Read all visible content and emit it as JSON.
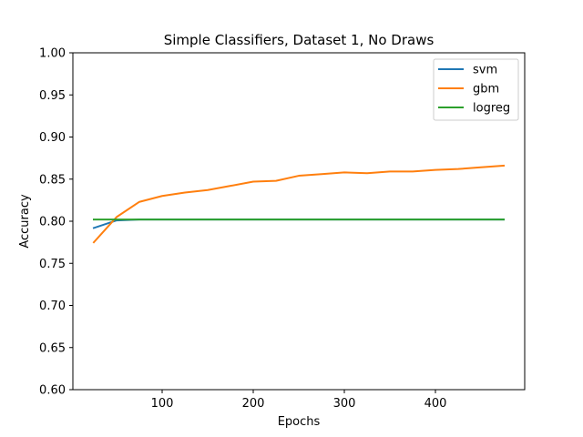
{
  "chart_data": {
    "type": "line",
    "title": "Simple Classifiers, Dataset 1, No Draws",
    "xlabel": "Epochs",
    "ylabel": "Accuracy",
    "xlim": [
      2,
      498
    ],
    "ylim": [
      0.6,
      1.0
    ],
    "xticks": [
      100,
      200,
      300,
      400
    ],
    "yticks": [
      0.6,
      0.65,
      0.7,
      0.75,
      0.8,
      0.85,
      0.9,
      0.95,
      1.0
    ],
    "ytick_labels": [
      "0.60",
      "0.65",
      "0.70",
      "0.75",
      "0.80",
      "0.85",
      "0.90",
      "0.95",
      "1.00"
    ],
    "grid": false,
    "legend_position": "top-right",
    "x": [
      25,
      50,
      75,
      100,
      125,
      150,
      175,
      200,
      225,
      250,
      275,
      300,
      325,
      350,
      375,
      400,
      425,
      450,
      475
    ],
    "series": [
      {
        "name": "svm",
        "color": "#1f77b4",
        "values": [
          0.792,
          0.801,
          0.802,
          0.802,
          0.802,
          0.802,
          0.802,
          0.802,
          0.802,
          0.802,
          0.802,
          0.802,
          0.802,
          0.802,
          0.802,
          0.802,
          0.802,
          0.802,
          0.802
        ]
      },
      {
        "name": "gbm",
        "color": "#ff7f0e",
        "values": [
          0.775,
          0.805,
          0.823,
          0.83,
          0.834,
          0.837,
          0.842,
          0.847,
          0.848,
          0.854,
          0.856,
          0.858,
          0.857,
          0.859,
          0.859,
          0.861,
          0.862,
          0.864,
          0.866
        ]
      },
      {
        "name": "logreg",
        "color": "#2ca02c",
        "values": [
          0.802,
          0.802,
          0.802,
          0.802,
          0.802,
          0.802,
          0.802,
          0.802,
          0.802,
          0.802,
          0.802,
          0.802,
          0.802,
          0.802,
          0.802,
          0.802,
          0.802,
          0.802,
          0.802
        ]
      }
    ]
  }
}
